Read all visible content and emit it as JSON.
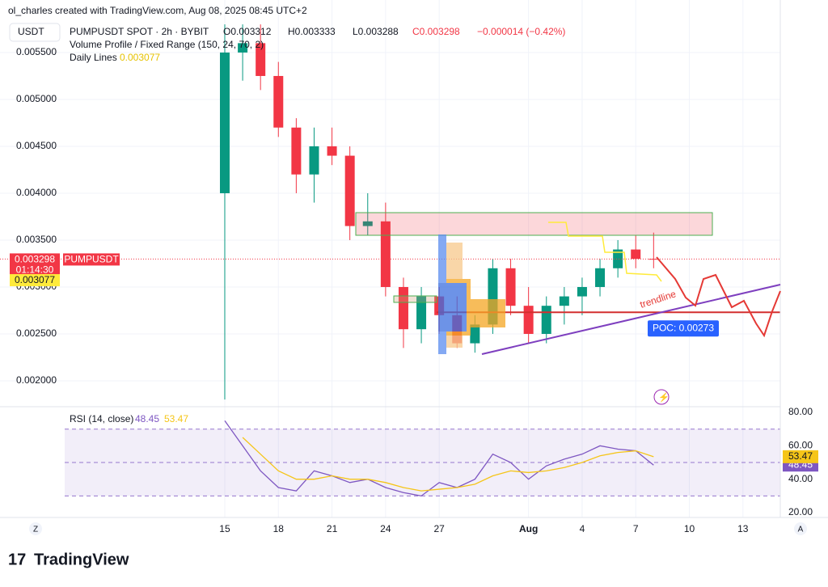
{
  "header": {
    "credit": "ol_charles created with TradingView.com, Aug 08, 2025 08:45 UTC+2",
    "currency": "USDT",
    "symbol": "PUMPUSDT SPOT · 2h · BYBIT",
    "open": "O0.003312",
    "high": "H0.003333",
    "low": "L0.003288",
    "close": "C0.003298",
    "change": "−0.000014 (−0.42%)",
    "indicator": "Volume Profile / Fixed Range (150, 24, 70, 2)",
    "daily_lines": "Daily Lines",
    "daily_value": 0.003077,
    "symbol_tag": "PUMPUSDT",
    "countdown": "01:14:30",
    "trendline": "trendline"
  },
  "footer": {
    "logo": "TradingView",
    "left_button": "Z",
    "right_button": "A"
  },
  "chart_data": [
    {
      "type": "candlestick",
      "up_color": "#089981",
      "down_color": "#f23645",
      "x": [
        0,
        1,
        2,
        3,
        4,
        5,
        6,
        7,
        8,
        9,
        10,
        11,
        12,
        13,
        14,
        15,
        16,
        17,
        18,
        19,
        20,
        21,
        22,
        23,
        24
      ],
      "open": [
        0.004,
        0.0055,
        0.0056,
        0.00525,
        0.0047,
        0.0042,
        0.0045,
        0.0044,
        0.00365,
        0.0037,
        0.003,
        0.00255,
        0.0029,
        0.0027,
        0.0024,
        0.0026,
        0.0032,
        0.0028,
        0.0025,
        0.0028,
        0.0029,
        0.003,
        0.0032,
        0.0034,
        0.0033
      ],
      "high": [
        0.0058,
        0.0058,
        0.0058,
        0.0054,
        0.0048,
        0.0047,
        0.0047,
        0.0045,
        0.004,
        0.0039,
        0.0031,
        0.003,
        0.003,
        0.0029,
        0.0027,
        0.0033,
        0.0033,
        0.003,
        0.0029,
        0.003,
        0.0031,
        0.0033,
        0.0035,
        0.00355,
        0.00358
      ],
      "low": [
        0.0018,
        0.0052,
        0.0051,
        0.0046,
        0.004,
        0.0039,
        0.0043,
        0.0035,
        0.00355,
        0.0029,
        0.00235,
        0.0024,
        0.0025,
        0.00235,
        0.0023,
        0.0025,
        0.0027,
        0.0024,
        0.0024,
        0.0026,
        0.0027,
        0.0029,
        0.0031,
        0.0032,
        0.0032
      ],
      "close": [
        0.0055,
        0.0056,
        0.00525,
        0.0047,
        0.0042,
        0.0045,
        0.0044,
        0.00365,
        0.0037,
        0.003,
        0.00255,
        0.0029,
        0.0027,
        0.0024,
        0.0026,
        0.0032,
        0.0028,
        0.0025,
        0.0028,
        0.0029,
        0.003,
        0.0032,
        0.0034,
        0.0033,
        0.003298
      ],
      "xlim": [
        -12.58,
        31.09
      ],
      "xticks": [
        {
          "value": 0,
          "label": "15"
        },
        {
          "value": 3,
          "label": "18"
        },
        {
          "value": 6,
          "label": "21"
        },
        {
          "value": 9,
          "label": "24"
        },
        {
          "value": 12,
          "label": "27"
        },
        {
          "value": 17,
          "label": "Aug"
        },
        {
          "value": 20,
          "label": "4"
        },
        {
          "value": 23,
          "label": "7"
        },
        {
          "value": 26,
          "label": "10"
        },
        {
          "value": 29,
          "label": "13"
        }
      ],
      "ylim": [
        0.001724,
        0.00606
      ],
      "yticks": [
        {
          "value": 0.002,
          "label": "0.002000"
        },
        {
          "value": 0.0025,
          "label": "0.002500"
        },
        {
          "value": 0.003,
          "label": "0.003000"
        },
        {
          "value": 0.0035,
          "label": "0.003500"
        },
        {
          "value": 0.004,
          "label": "0.004000"
        },
        {
          "value": 0.0045,
          "label": "0.004500"
        },
        {
          "value": 0.005,
          "label": "0.005000"
        },
        {
          "value": 0.0055,
          "label": "0.005500"
        }
      ],
      "last_price": 0.003298,
      "poc": {
        "value": 0.00273,
        "label": "POC: 0.00273"
      }
    },
    {
      "type": "line",
      "title": "RSI (14, close)",
      "x": [
        0,
        1,
        2,
        3,
        4,
        5,
        6,
        7,
        8,
        9,
        10,
        11,
        12,
        13,
        14,
        15,
        16,
        17,
        18,
        19,
        20,
        21,
        22,
        23,
        24
      ],
      "series": [
        {
          "name": "RSI",
          "color": "#7e57c2",
          "values": [
            75,
            60,
            45,
            35,
            33,
            45,
            42,
            38,
            40,
            35,
            32,
            30,
            38,
            35,
            40,
            55,
            50,
            40,
            48,
            52,
            55,
            60,
            58,
            57,
            48.45
          ]
        },
        {
          "name": "RSI MA",
          "color": "#f5c518",
          "values": [
            null,
            65,
            55,
            45,
            40,
            40,
            42,
            40,
            40,
            38,
            35,
            33,
            34,
            35,
            37,
            42,
            45,
            44,
            45,
            47,
            50,
            54,
            56,
            57,
            53.47
          ]
        }
      ],
      "ylim": [
        17.1,
        83.4
      ],
      "yticks": [
        {
          "value": 20,
          "label": "20.00"
        },
        {
          "value": 40,
          "label": "40.00"
        },
        {
          "value": 60,
          "label": "60.00"
        },
        {
          "value": 80,
          "label": "80.00"
        }
      ],
      "bands": [
        70,
        50,
        30
      ]
    }
  ]
}
